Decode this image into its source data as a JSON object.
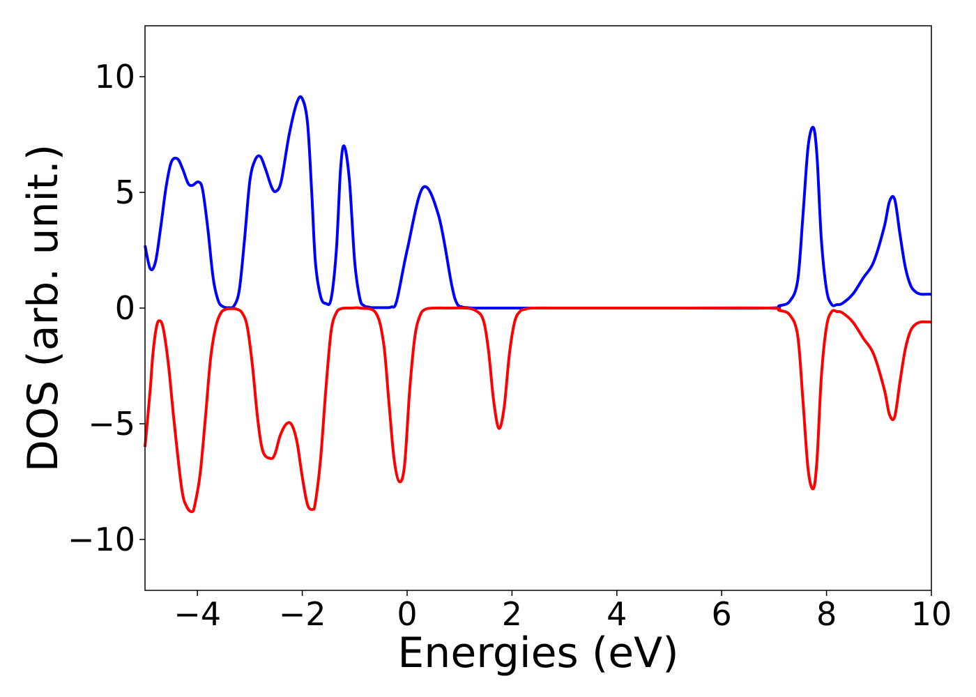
{
  "chart_data": {
    "type": "line",
    "title": "",
    "xlabel": "Energies (eV)",
    "ylabel": "DOS (arb. unit.)",
    "xlim": [
      -5,
      10
    ],
    "ylim": [
      -12.2,
      12.2
    ],
    "xticks": [
      -4,
      -2,
      0,
      2,
      4,
      6,
      8,
      10
    ],
    "xtick_labels": [
      "−4",
      "−2",
      "0",
      "2",
      "4",
      "6",
      "8",
      "10"
    ],
    "yticks": [
      -10,
      -5,
      0,
      5,
      10
    ],
    "ytick_labels": [
      "−10",
      "−5",
      "0",
      "5",
      "10"
    ],
    "grid": false,
    "legend": "none",
    "series": [
      {
        "color": "#0000ff",
        "x": [
          -5.0,
          -4.9,
          -4.8,
          -4.7,
          -4.6,
          -4.5,
          -4.38,
          -4.28,
          -4.18,
          -4.1,
          -3.98,
          -3.9,
          -3.8,
          -3.7,
          -3.6,
          -3.5,
          -3.4,
          -3.3,
          -3.2,
          -3.1,
          -3.0,
          -2.9,
          -2.8,
          -2.7,
          -2.58,
          -2.5,
          -2.4,
          -2.25,
          -2.1,
          -2.0,
          -1.9,
          -1.82,
          -1.75,
          -1.65,
          -1.55,
          -1.45,
          -1.35,
          -1.27,
          -1.2,
          -1.1,
          -1.0,
          -0.9,
          -0.82,
          -0.75,
          -0.68,
          -0.6,
          -0.5,
          -0.4,
          -0.3,
          -0.2,
          0.0,
          0.3,
          0.6,
          0.85,
          0.95,
          1.05,
          1.15,
          1.25,
          1.32,
          1.4,
          1.5,
          1.6,
          1.7,
          1.85,
          2.0,
          3.0,
          5.0,
          6.9,
          7.1,
          7.3,
          7.45,
          7.55,
          7.65,
          7.75,
          7.82,
          7.9,
          8.0,
          8.1,
          8.2,
          8.3,
          8.5,
          8.7,
          8.9,
          9.1,
          9.2,
          9.3,
          9.4,
          9.5,
          9.6,
          9.7,
          9.8,
          9.9,
          10.0
        ],
        "y": [
          2.7,
          1.7,
          2.0,
          3.5,
          5.2,
          6.3,
          6.45,
          6.0,
          5.4,
          5.3,
          5.45,
          5.1,
          3.4,
          1.3,
          0.3,
          0.05,
          0.02,
          0.1,
          0.8,
          3.0,
          5.5,
          6.4,
          6.55,
          6.0,
          5.2,
          5.05,
          5.5,
          7.5,
          8.9,
          9.05,
          8.0,
          5.0,
          2.0,
          0.5,
          0.2,
          0.4,
          2.5,
          6.0,
          7.0,
          5.5,
          2.0,
          0.4,
          0.1,
          0.05,
          0.02,
          0.02,
          0.02,
          0.02,
          0.05,
          0.3,
          2.5,
          5.2,
          4.0,
          1.0,
          0.2,
          0.05,
          0.02,
          0.0,
          0.0,
          0.0,
          0.0,
          0.0,
          0.0,
          0.0,
          0.0,
          0.0,
          0.0,
          0.0,
          0.1,
          0.3,
          1.2,
          4.0,
          7.0,
          7.8,
          6.5,
          3.0,
          0.8,
          0.15,
          0.15,
          0.2,
          0.6,
          1.3,
          2.0,
          3.5,
          4.6,
          4.7,
          3.2,
          1.8,
          1.0,
          0.7,
          0.6,
          0.6,
          0.6
        ]
      },
      {
        "color": "#ff0000",
        "x": [
          -5.0,
          -4.9,
          -4.85,
          -4.78,
          -4.72,
          -4.65,
          -4.55,
          -4.45,
          -4.3,
          -4.2,
          -4.1,
          -4.05,
          -3.95,
          -3.85,
          -3.75,
          -3.65,
          -3.55,
          -3.45,
          -3.35,
          -3.25,
          -3.15,
          -3.05,
          -2.95,
          -2.85,
          -2.75,
          -2.6,
          -2.52,
          -2.42,
          -2.3,
          -2.2,
          -2.1,
          -2.0,
          -1.9,
          -1.8,
          -1.75,
          -1.65,
          -1.55,
          -1.45,
          -1.35,
          -1.25,
          -1.15,
          -1.05,
          -0.9,
          -0.6,
          -0.45,
          -0.35,
          -0.25,
          -0.15,
          -0.05,
          0.05,
          0.15,
          0.25,
          0.35,
          0.5,
          0.8,
          1.1,
          1.3,
          1.45,
          1.55,
          1.65,
          1.75,
          1.85,
          1.95,
          2.05,
          2.15,
          2.25,
          2.4,
          3.0,
          5.0,
          6.9,
          7.1,
          7.3,
          7.45,
          7.55,
          7.65,
          7.75,
          7.82,
          7.9,
          8.0,
          8.1,
          8.2,
          8.3,
          8.5,
          8.7,
          8.9,
          9.1,
          9.2,
          9.3,
          9.4,
          9.5,
          9.6,
          9.7,
          9.8,
          9.9,
          10.0
        ],
        "y": [
          -6.0,
          -3.5,
          -2.0,
          -0.8,
          -0.55,
          -0.9,
          -2.5,
          -4.8,
          -7.8,
          -8.6,
          -8.8,
          -8.5,
          -7.2,
          -4.8,
          -2.2,
          -0.8,
          -0.2,
          -0.05,
          -0.02,
          -0.05,
          -0.2,
          -0.8,
          -2.5,
          -4.8,
          -6.2,
          -6.5,
          -6.3,
          -5.5,
          -5.0,
          -5.05,
          -5.8,
          -7.3,
          -8.5,
          -8.7,
          -8.4,
          -6.5,
          -3.5,
          -1.0,
          -0.2,
          -0.02,
          0.0,
          0.0,
          0.0,
          -0.2,
          -1.5,
          -4.0,
          -6.5,
          -7.5,
          -6.8,
          -3.5,
          -1.2,
          -0.3,
          -0.05,
          0.0,
          0.0,
          0.0,
          -0.1,
          -0.5,
          -1.8,
          -4.0,
          -5.2,
          -4.3,
          -2.0,
          -0.6,
          -0.15,
          -0.05,
          0.0,
          0.0,
          0.0,
          0.0,
          -0.1,
          -0.3,
          -1.2,
          -4.0,
          -7.0,
          -7.8,
          -6.5,
          -3.0,
          -0.8,
          -0.15,
          -0.15,
          -0.2,
          -0.6,
          -1.3,
          -2.0,
          -3.5,
          -4.6,
          -4.7,
          -3.2,
          -1.8,
          -1.0,
          -0.7,
          -0.6,
          -0.6,
          -0.6
        ]
      }
    ]
  }
}
